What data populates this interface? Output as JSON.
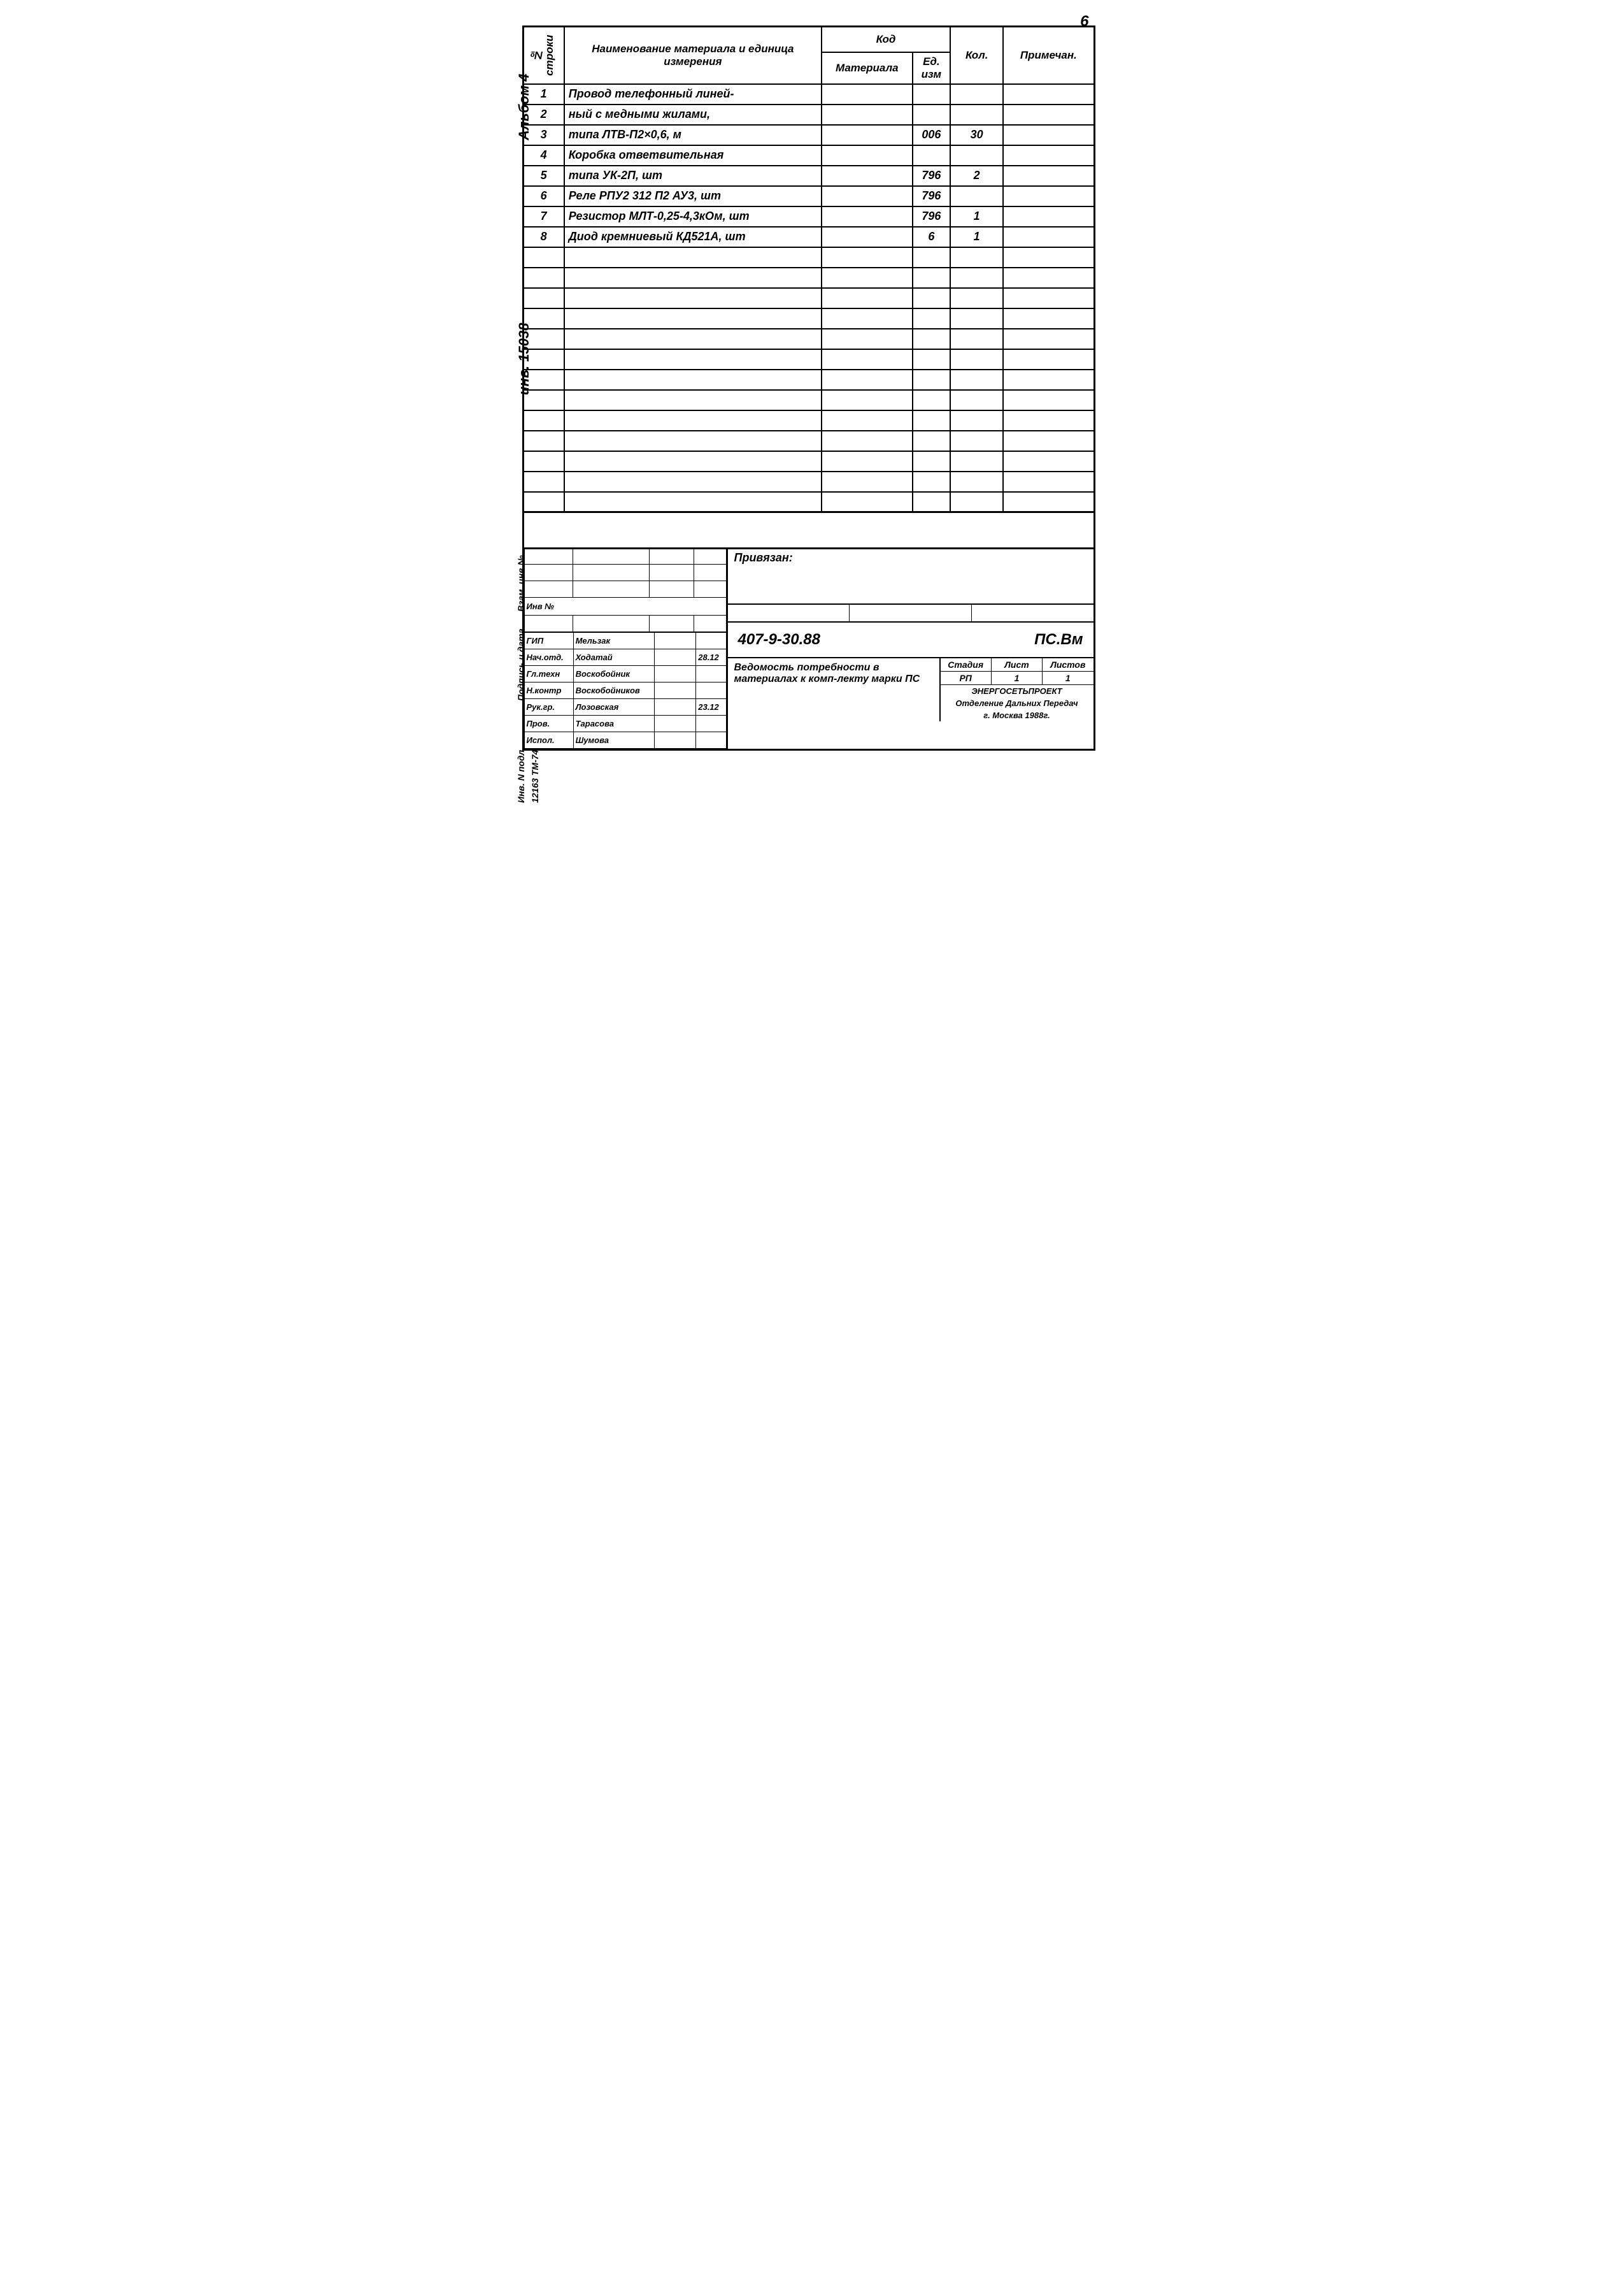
{
  "page_number": "6",
  "side_labels": {
    "album": "Альбом 4",
    "inv": "инв. 15038",
    "l1": "Взам. инв №",
    "l2": "Подпись и дата",
    "l3": "Инв. N подл.",
    "code": "12163 ТМ-74"
  },
  "headers": {
    "num_col": "№ строки",
    "name": "Наименование материала и единица измерения",
    "code": "Код",
    "material": "Материала",
    "unit": "Ед. изм",
    "qty": "Кол.",
    "note": "Примечан."
  },
  "rows": [
    {
      "n": "1",
      "name": "Провод телефонный линей-",
      "mat": "",
      "unit": "",
      "qty": "",
      "note": ""
    },
    {
      "n": "2",
      "name": "ный с медными жилами,",
      "mat": "",
      "unit": "",
      "qty": "",
      "note": ""
    },
    {
      "n": "3",
      "name": "типа ЛТВ-П2×0,6,        м",
      "mat": "",
      "unit": "006",
      "qty": "30",
      "note": ""
    },
    {
      "n": "4",
      "name": "Коробка ответвительная",
      "mat": "",
      "unit": "",
      "qty": "",
      "note": ""
    },
    {
      "n": "5",
      "name": "типа УК-2П,           шт",
      "mat": "",
      "unit": "796",
      "qty": "2",
      "note": ""
    },
    {
      "n": "6",
      "name": "Реле РПУ2 312 П2 АУ3,   шт",
      "mat": "",
      "unit": "796",
      "qty": "",
      "note": ""
    },
    {
      "n": "7",
      "name": "Резистор МЛТ-0,25-4,3кОм, шт",
      "mat": "",
      "unit": "796",
      "qty": "1",
      "note": ""
    },
    {
      "n": "8",
      "name": "Диод кремниевый КД521А, шт",
      "mat": "",
      "unit": "6",
      "qty": "1",
      "note": ""
    }
  ],
  "empty_rows": 13,
  "privyazan": "Привязан:",
  "inv_label": "Инв №",
  "signatures": [
    {
      "role": "ГИП",
      "name": "Мельзак",
      "sign": "",
      "date": ""
    },
    {
      "role": "Нач.отд.",
      "name": "Ходатай",
      "sign": "",
      "date": "28.12"
    },
    {
      "role": "Гл.техн",
      "name": "Воскобойник",
      "sign": "",
      "date": ""
    },
    {
      "role": "Н.контр",
      "name": "Воскобойников",
      "sign": "",
      "date": ""
    },
    {
      "role": "Рук.гр.",
      "name": "Лозовская",
      "sign": "",
      "date": "23.12"
    },
    {
      "role": "Пров.",
      "name": "Тарасова",
      "sign": "",
      "date": ""
    },
    {
      "role": "Испол.",
      "name": "Шумова",
      "sign": "",
      "date": ""
    }
  ],
  "doc_code": "407-9-30.88",
  "doc_suffix": "ПС.Вм",
  "doc_title": "Ведомость потребности в материалах к комп-лекту марки ПС",
  "meta": {
    "stage_h": "Стадия",
    "sheet_h": "Лист",
    "sheets_h": "Листов",
    "stage": "РП",
    "sheet": "1",
    "sheets": "1",
    "org": "ЭНЕРГОСЕТЬПРОЕКТ",
    "dept": "Отделение Дальних Передач",
    "city": "г. Москва     1988г."
  }
}
